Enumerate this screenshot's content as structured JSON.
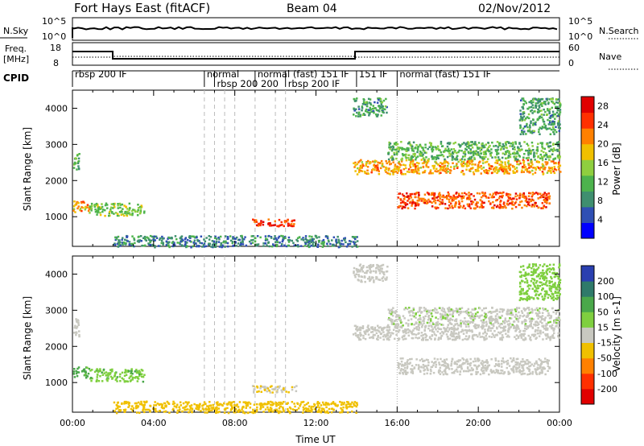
{
  "header": {
    "station": "Fort Hays East (fitACF)",
    "beam": "Beam 04",
    "date": "02/Nov/2012"
  },
  "top_panels": {
    "nsky_label": "N.Sky",
    "nsky_ticks": [
      "10^5",
      "10^0"
    ],
    "nsearch_label": "N.Search",
    "nsearch_ticks": [
      "10^5",
      "10^0"
    ],
    "freq_label_1": "Freq.",
    "freq_label_2": "[MHz]",
    "freq_ticks": [
      "18",
      "8"
    ],
    "nave_label": "Nave",
    "nave_ticks": [
      "60",
      "0"
    ],
    "cpid_label": "CPID"
  },
  "cpid_segments": [
    {
      "start": 0.0,
      "label": "rbsp 200 IF"
    },
    {
      "start": 6.5,
      "label": "normal"
    },
    {
      "start": 7.0,
      "label": "rbsp 200 200"
    },
    {
      "start": 9.0,
      "label": "normal (fast) 151 IF"
    },
    {
      "start": 10.5,
      "label": "rbsp 200 IF"
    },
    {
      "start": 14.0,
      "label": "151 IF"
    },
    {
      "start": 16.0,
      "label": "normal (fast) 151 IF"
    }
  ],
  "chart_data": [
    {
      "type": "heatmap",
      "name": "power",
      "ylabel": "Slant Range [km]",
      "xlabel": "Time UT",
      "xlim": [
        0,
        24
      ],
      "ylim": [
        180,
        4500
      ],
      "x_ticks": [
        "00:00",
        "04:00",
        "08:00",
        "12:00",
        "16:00",
        "20:00",
        "00:00"
      ],
      "y_ticks": [
        1000,
        2000,
        3000,
        4000
      ],
      "colorbar": {
        "label": "Power [dB]",
        "ticks": [
          4,
          8,
          12,
          16,
          20,
          24,
          28
        ],
        "range": [
          0,
          30
        ],
        "colors": [
          "#0000ff",
          "#2f4fb4",
          "#3f8f6f",
          "#4db34d",
          "#8fcf3f",
          "#f0c000",
          "#ff8000",
          "#ff3000",
          "#e00000"
        ]
      },
      "regions": [
        {
          "t0": 0.0,
          "t1": 0.3,
          "r0": 2300,
          "r1": 2800,
          "value": 12
        },
        {
          "t0": 0.0,
          "t1": 0.8,
          "r0": 1150,
          "r1": 1450,
          "value": 20
        },
        {
          "t0": 0.8,
          "t1": 3.5,
          "r0": 1050,
          "r1": 1400,
          "value": 14
        },
        {
          "t0": 8.8,
          "t1": 11.0,
          "r0": 750,
          "r1": 950,
          "value": 26
        },
        {
          "t0": 13.8,
          "t1": 24.0,
          "r0": 2200,
          "r1": 2600,
          "value": 20
        },
        {
          "t0": 16.0,
          "t1": 23.5,
          "r0": 1250,
          "r1": 1700,
          "value": 24
        },
        {
          "t0": 15.5,
          "t1": 24.0,
          "r0": 2600,
          "r1": 3100,
          "value": 12
        },
        {
          "t0": 13.8,
          "t1": 15.5,
          "r0": 3800,
          "r1": 4300,
          "value": 10
        },
        {
          "t0": 22.0,
          "t1": 24.0,
          "r0": 3300,
          "r1": 4300,
          "value": 10
        },
        {
          "t0": 2.0,
          "t1": 14.0,
          "r0": 180,
          "r1": 500,
          "value": 8
        }
      ]
    },
    {
      "type": "heatmap",
      "name": "velocity",
      "ylabel": "Slant Range [km]",
      "xlabel": "Time UT",
      "xlim": [
        0,
        24
      ],
      "ylim": [
        180,
        4500
      ],
      "x_ticks": [
        "00:00",
        "04:00",
        "08:00",
        "12:00",
        "16:00",
        "20:00",
        "00:00"
      ],
      "y_ticks": [
        1000,
        2000,
        3000,
        4000
      ],
      "colorbar": {
        "label": "Velocity [m s-1]",
        "ticks": [
          200,
          100,
          50,
          15,
          -15,
          -50,
          -100,
          -200
        ],
        "colors": [
          "#2a3fb0",
          "#2f7a6a",
          "#4aa84a",
          "#7fcf3f",
          "#c8c8c0",
          "#f0c000",
          "#ff8000",
          "#ff3000",
          "#e00000"
        ]
      },
      "regions": [
        {
          "t0": 0.0,
          "t1": 0.3,
          "r0": 2300,
          "r1": 2800,
          "value": 0
        },
        {
          "t0": 0.0,
          "t1": 0.8,
          "r0": 1150,
          "r1": 1450,
          "value": 60
        },
        {
          "t0": 0.8,
          "t1": 3.5,
          "r0": 1050,
          "r1": 1400,
          "value": 40
        },
        {
          "t0": 8.8,
          "t1": 11.0,
          "r0": 750,
          "r1": 950,
          "value": -10
        },
        {
          "t0": 13.8,
          "t1": 24.0,
          "r0": 2200,
          "r1": 2600,
          "value": 0
        },
        {
          "t0": 16.0,
          "t1": 23.5,
          "r0": 1250,
          "r1": 1700,
          "value": 0
        },
        {
          "t0": 15.5,
          "t1": 24.0,
          "r0": 2600,
          "r1": 3100,
          "value": 5
        },
        {
          "t0": 13.8,
          "t1": 15.5,
          "r0": 3800,
          "r1": 4300,
          "value": 0
        },
        {
          "t0": 22.0,
          "t1": 24.0,
          "r0": 3300,
          "r1": 4300,
          "value": 30
        },
        {
          "t0": 2.0,
          "t1": 14.0,
          "r0": 180,
          "r1": 500,
          "value": -30
        }
      ]
    }
  ]
}
